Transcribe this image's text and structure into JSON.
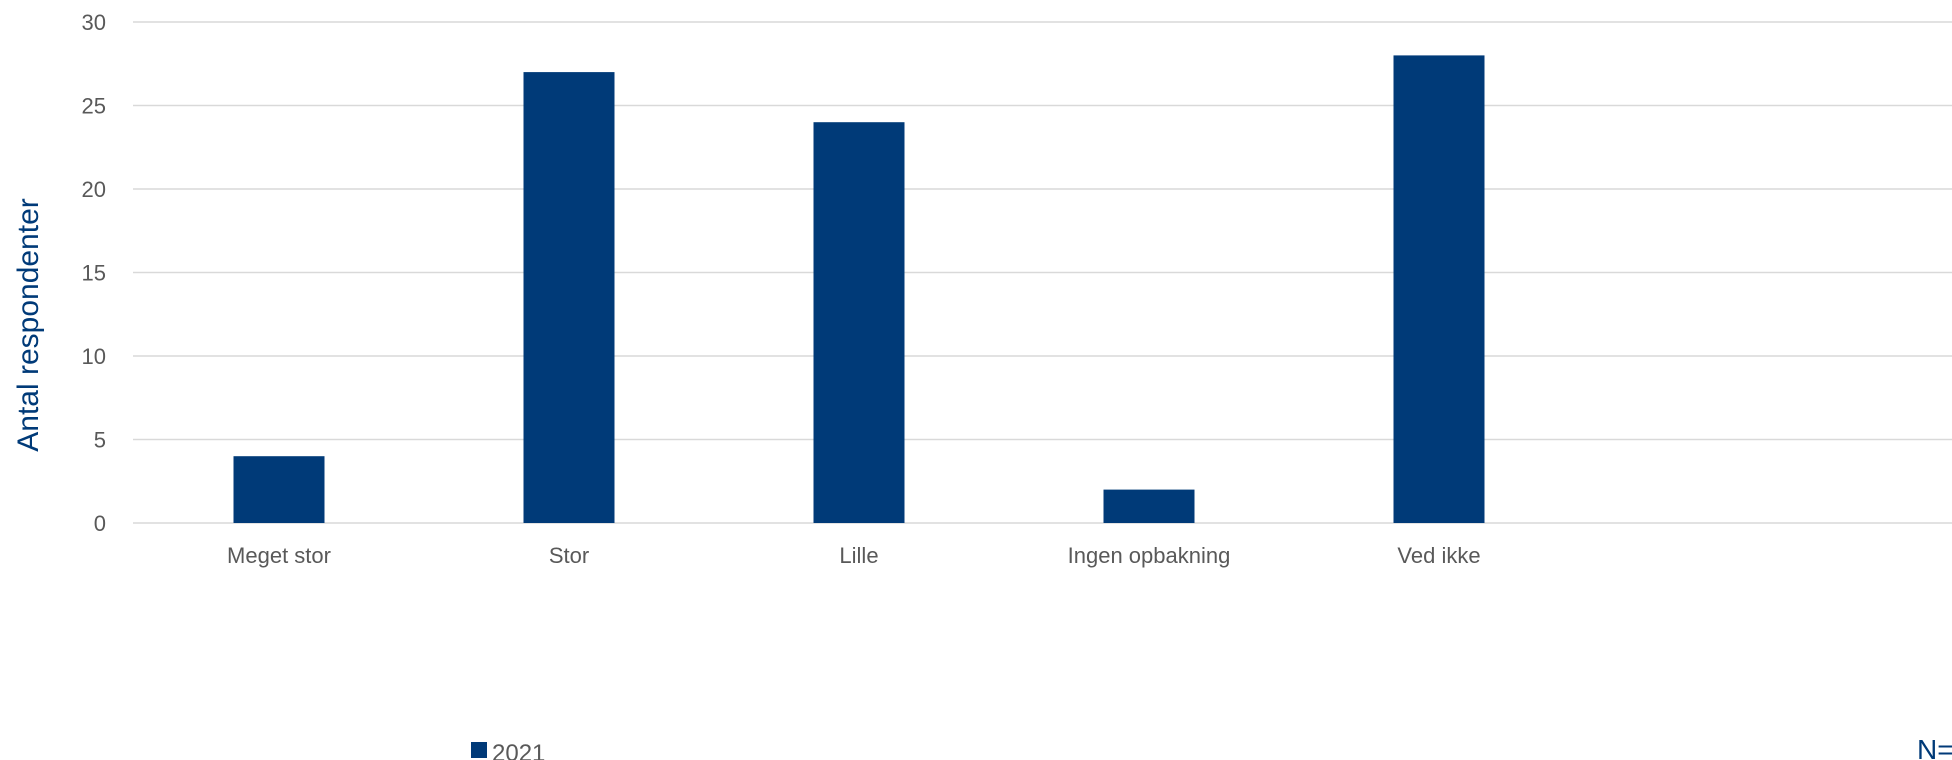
{
  "chart_data": {
    "type": "bar",
    "categories": [
      "Meget stor",
      "Stor",
      "Lille",
      "Ingen opbakning",
      "Ved ikke"
    ],
    "series": [
      {
        "name": "2021",
        "values": [
          4,
          27,
          24,
          2,
          28
        ]
      }
    ],
    "ylabel": "Antal respondenter",
    "xlabel": "",
    "ylim": [
      0,
      30
    ],
    "yticks": [
      0,
      5,
      10,
      15,
      20,
      25,
      30
    ],
    "grid": true,
    "legend": "bottom-center",
    "note": "N=",
    "colors": {
      "bar": "#003A78",
      "grid": "#D9D9D9",
      "text": "#595959",
      "accent": "#003A78"
    }
  }
}
